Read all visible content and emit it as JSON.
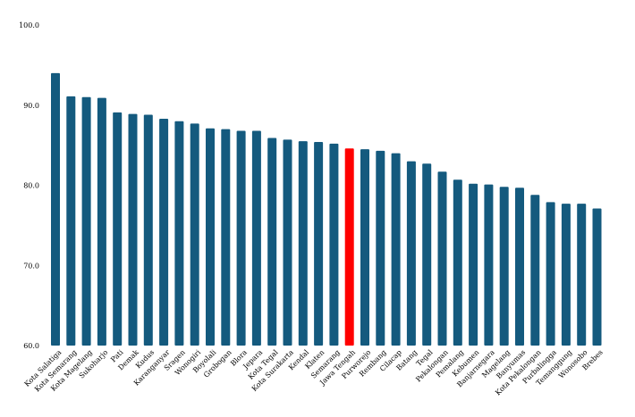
{
  "chart_data": {
    "type": "bar",
    "title": "",
    "xlabel": "",
    "ylabel": "",
    "ylim": [
      60.0,
      100.0
    ],
    "yticks": [
      "60.0",
      "70.0",
      "80.0",
      "90.0",
      "100.0"
    ],
    "grid": false,
    "legend": "none",
    "colors": {
      "default": "#145a7e",
      "highlight": "#ff0000"
    },
    "highlight_category": "Jawa Tengah",
    "categories": [
      "Kota Salatiga",
      "Kota Semarang",
      "Kota Magelang",
      "Sukoharjo",
      "Pati",
      "Demak",
      "Kudus",
      "Karanganyar",
      "Sragen",
      "Wonogiri",
      "Boyolali",
      "Grobogan",
      "Blora",
      "Jepara",
      "Kota Tegal",
      "Kota Surakarta",
      "Kendal",
      "Klaten",
      "Semarang",
      "Jawa Tengah",
      "Purworejo",
      "Rembang",
      "Cilacap",
      "Batang",
      "Tegal",
      "Pekalongan",
      "Pemalang",
      "Kebumen",
      "Banjarnegara",
      "Magelang",
      "Banyumas",
      "Kota Pekalongan",
      "Purbalingga",
      "Temanggung",
      "Wonosobo",
      "Brebes"
    ],
    "values": [
      94.0,
      91.1,
      91.0,
      90.9,
      89.1,
      88.9,
      88.8,
      88.3,
      88.0,
      87.7,
      87.1,
      87.0,
      86.8,
      86.8,
      85.9,
      85.7,
      85.5,
      85.4,
      85.2,
      84.6,
      84.5,
      84.3,
      84.0,
      83.0,
      82.7,
      81.7,
      80.7,
      80.2,
      80.1,
      79.8,
      79.7,
      78.8,
      77.9,
      77.7,
      77.7,
      77.1
    ]
  }
}
